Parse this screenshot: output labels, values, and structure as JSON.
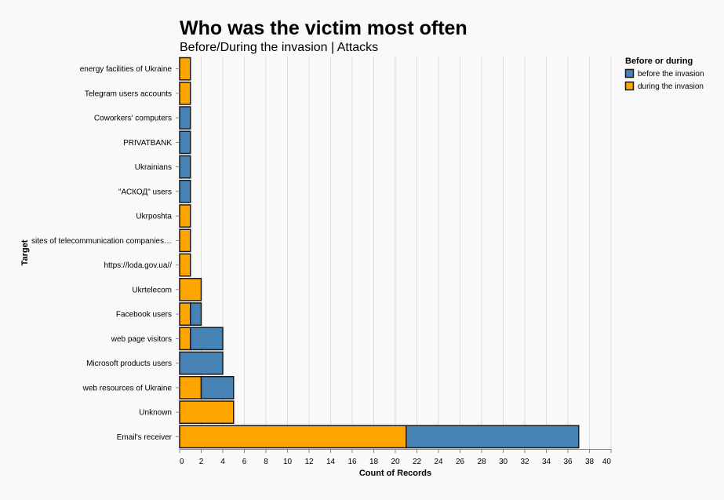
{
  "chart_data": {
    "type": "bar",
    "orientation": "horizontal",
    "stacked": true,
    "title": "Who was the victim most often",
    "subtitle": "Before/During the invasion | Attacks",
    "xlabel": "Count of Records",
    "ylabel": "Target",
    "xlim": [
      0,
      40
    ],
    "xticks": [
      0,
      2,
      4,
      6,
      8,
      10,
      12,
      14,
      16,
      18,
      20,
      22,
      24,
      26,
      28,
      30,
      32,
      34,
      36,
      38,
      40
    ],
    "grid": true,
    "legend_position": "top-right",
    "categories": [
      "energy facilities of Ukraine",
      "Telegram users accounts",
      "Coworkers' computers",
      "PRIVATBANK",
      "Ukrainians",
      "\"АСКОД\" users",
      "Ukrposhta",
      "sites of telecommunication companies…",
      "https://loda.gov.ua//",
      "Ukrtelecom",
      "Facebook users",
      "web page visitors",
      "Microsoft products users",
      "web resources of Ukraine",
      "Unknown",
      "Email's receiver"
    ],
    "legend": {
      "title": "Before or during",
      "entries": [
        "before the invasion",
        "during the invasion"
      ]
    },
    "series": [
      {
        "name": "during the invasion",
        "color": "#FFA500",
        "values": [
          1,
          1,
          0,
          0,
          0,
          0,
          1,
          1,
          1,
          2,
          1,
          1,
          0,
          2,
          5,
          21
        ]
      },
      {
        "name": "before the invasion",
        "color": "#4682B4",
        "values": [
          0,
          0,
          1,
          1,
          1,
          1,
          0,
          0,
          0,
          0,
          1,
          3,
          4,
          3,
          0,
          16
        ]
      }
    ]
  }
}
